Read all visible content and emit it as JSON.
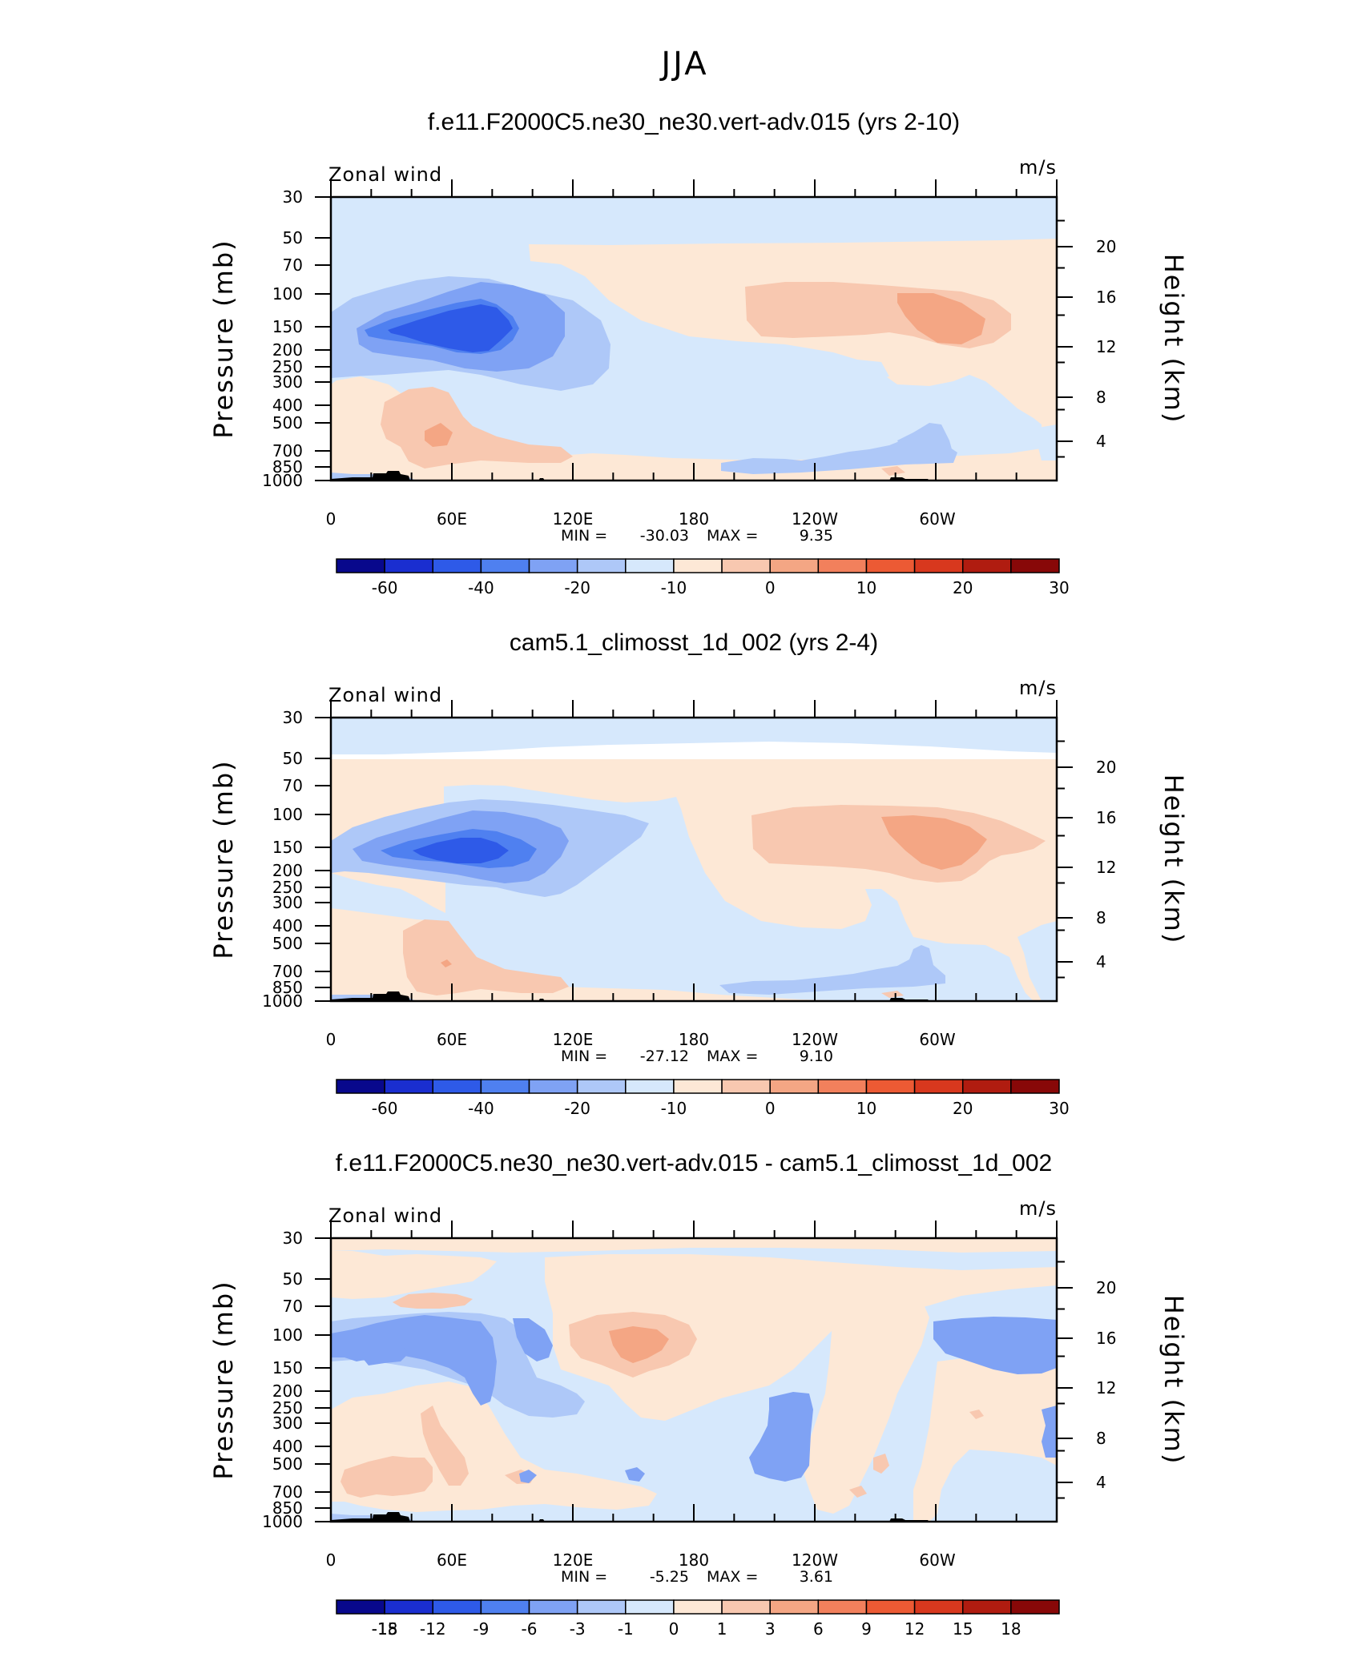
{
  "figure": {
    "title": "JJA",
    "colors": {
      "palette": [
        "#08088c",
        "#1a2ed0",
        "#2e5ae8",
        "#4f80f0",
        "#7fa2f4",
        "#aec8f8",
        "#d6e8fc",
        "#fde8d6",
        "#f8c8b0",
        "#f4a684",
        "#f2805c",
        "#ec5a34",
        "#d8381e",
        "#b01c10",
        "#880808"
      ]
    }
  },
  "chart_data": [
    {
      "type": "contour",
      "subtitle": "f.e11.F2000C5.ne30_ne30.vert-adv.015 (yrs 2-10)",
      "variable_label": "Zonal wind",
      "units_label": "m/s",
      "ylabel": "Pressure (mb)",
      "y2label": "Height (km)",
      "x_ticks": [
        "0",
        "60E",
        "120E",
        "180",
        "120W",
        "60W"
      ],
      "y_ticks": [
        "30",
        "50",
        "70",
        "100",
        "150",
        "200",
        "250",
        "300",
        "400",
        "500",
        "700",
        "850",
        "1000"
      ],
      "y2_ticks": [
        "20",
        "16",
        "12",
        "8",
        "4"
      ],
      "min_label": "MIN = ",
      "min_value": "-30.03",
      "max_label": "MAX = ",
      "max_value": "9.35",
      "min": -30.03,
      "max": 9.35,
      "colorbar_labels": [
        "-60",
        "-40",
        "-20",
        "-10",
        "0",
        "10",
        "20",
        "30"
      ],
      "colorbar_levels": [
        -70,
        -60,
        -50,
        -40,
        -30,
        -20,
        -15,
        -10,
        -5,
        0,
        5,
        10,
        15,
        20,
        25,
        30
      ]
    },
    {
      "type": "contour",
      "subtitle": "cam5.1_climosst_1d_002 (yrs 2-4)",
      "variable_label": "Zonal wind",
      "units_label": "m/s",
      "ylabel": "Pressure (mb)",
      "y2label": "Height (km)",
      "x_ticks": [
        "0",
        "60E",
        "120E",
        "180",
        "120W",
        "60W"
      ],
      "y_ticks": [
        "30",
        "50",
        "70",
        "100",
        "150",
        "200",
        "250",
        "300",
        "400",
        "500",
        "700",
        "850",
        "1000"
      ],
      "y2_ticks": [
        "20",
        "16",
        "12",
        "8",
        "4"
      ],
      "min_label": "MIN = ",
      "min_value": "-27.12",
      "max_label": "MAX = ",
      "max_value": "9.10",
      "min": -27.12,
      "max": 9.1,
      "colorbar_labels": [
        "-60",
        "-40",
        "-20",
        "-10",
        "0",
        "10",
        "20",
        "30"
      ],
      "colorbar_levels": [
        -70,
        -60,
        -50,
        -40,
        -30,
        -20,
        -15,
        -10,
        -5,
        0,
        5,
        10,
        15,
        20,
        25,
        30
      ]
    },
    {
      "type": "contour",
      "subtitle": "f.e11.F2000C5.ne30_ne30.vert-adv.015 - cam5.1_climosst_1d_002",
      "variable_label": "Zonal wind",
      "units_label": "m/s",
      "ylabel": "Pressure (mb)",
      "y2label": "Height (km)",
      "x_ticks": [
        "0",
        "60E",
        "120E",
        "180",
        "120W",
        "60W"
      ],
      "y_ticks": [
        "30",
        "50",
        "70",
        "100",
        "150",
        "200",
        "250",
        "300",
        "400",
        "500",
        "700",
        "850",
        "1000"
      ],
      "y2_ticks": [
        "20",
        "16",
        "12",
        "8",
        "4"
      ],
      "min_label": "MIN = ",
      "min_value": "-5.25",
      "max_label": "MAX = ",
      "max_value": "3.61",
      "min": -5.25,
      "max": 3.61,
      "colorbar_labels": [
        "-18",
        "-15",
        "-12",
        "-9",
        "-6",
        "-3",
        "-1",
        "0",
        "1",
        "3",
        "6",
        "9",
        "12",
        "15",
        "18"
      ],
      "colorbar_levels": [
        -18,
        -15,
        -12,
        -9,
        -6,
        -3,
        -1,
        0,
        1,
        3,
        6,
        9,
        12,
        15,
        18
      ]
    }
  ]
}
